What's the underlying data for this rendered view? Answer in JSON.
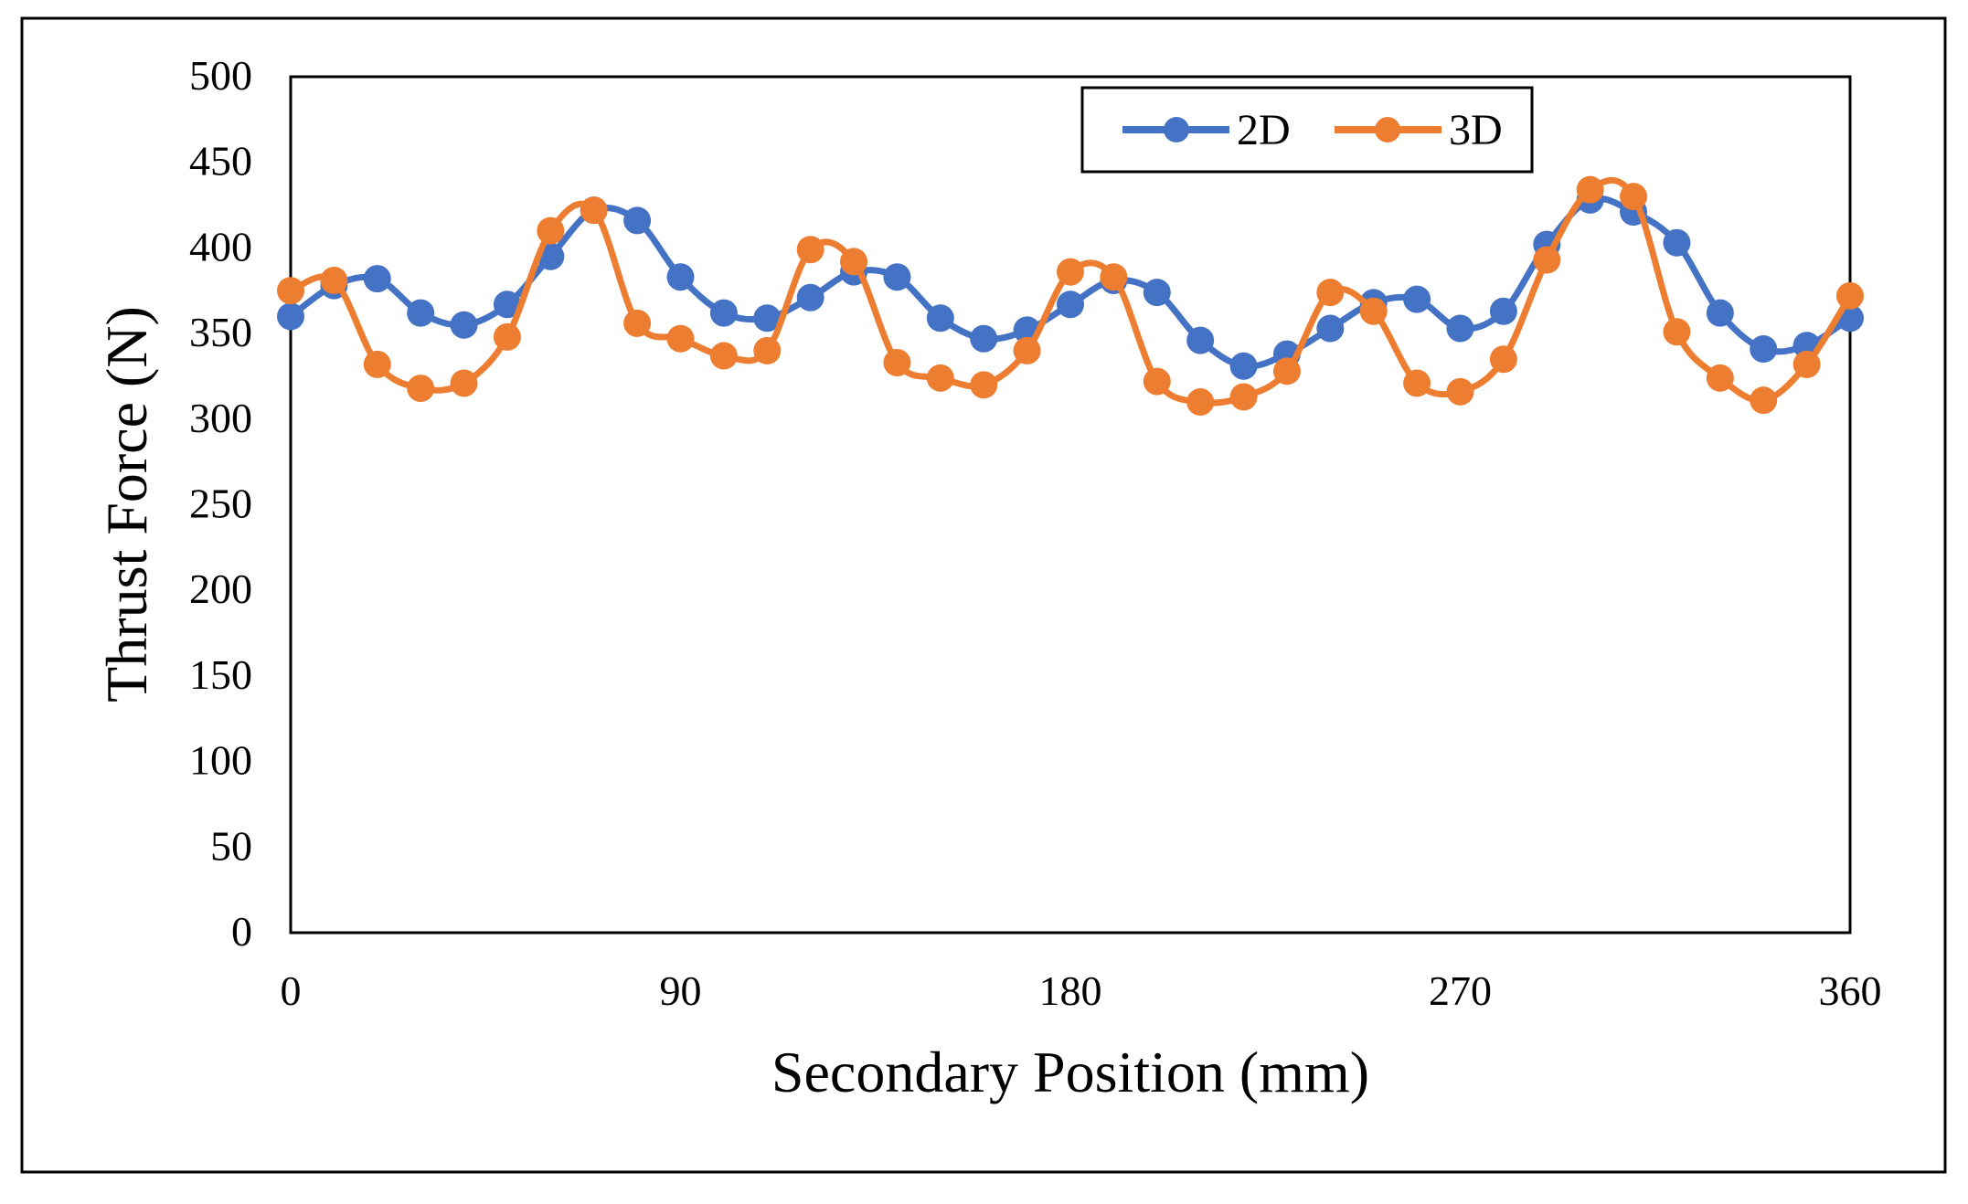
{
  "chart_data": {
    "type": "line",
    "title": "",
    "xlabel": "Secondary Position (mm)",
    "ylabel": "Thrust Force (N)",
    "xlim": [
      0,
      360
    ],
    "ylim": [
      0,
      500
    ],
    "x_ticks": [
      0,
      90,
      180,
      270,
      360
    ],
    "y_ticks": [
      0,
      50,
      100,
      150,
      200,
      250,
      300,
      350,
      400,
      450,
      500
    ],
    "grid": false,
    "legend_position": "top-right",
    "x": [
      0,
      10,
      20,
      30,
      40,
      50,
      60,
      70,
      80,
      90,
      100,
      110,
      120,
      130,
      140,
      150,
      160,
      170,
      180,
      190,
      200,
      210,
      220,
      230,
      240,
      250,
      260,
      270,
      280,
      290,
      300,
      310,
      320,
      330,
      340,
      350,
      360
    ],
    "series": [
      {
        "name": "2D",
        "color": "#4472C4",
        "values": [
          360,
          378,
          382,
          362,
          355,
          367,
          395,
          422,
          416,
          383,
          362,
          359,
          371,
          386,
          383,
          359,
          347,
          352,
          367,
          381,
          374,
          346,
          331,
          338,
          353,
          368,
          370,
          353,
          363,
          402,
          428,
          421,
          403,
          362,
          341,
          343,
          359
        ]
      },
      {
        "name": "3D",
        "color": "#ED7D31",
        "values": [
          375,
          381,
          332,
          318,
          321,
          348,
          410,
          422,
          356,
          347,
          337,
          340,
          399,
          392,
          333,
          324,
          320,
          340,
          386,
          383,
          322,
          310,
          313,
          328,
          374,
          363,
          321,
          316,
          335,
          393,
          434,
          430,
          351,
          324,
          311,
          332,
          372
        ]
      }
    ]
  }
}
